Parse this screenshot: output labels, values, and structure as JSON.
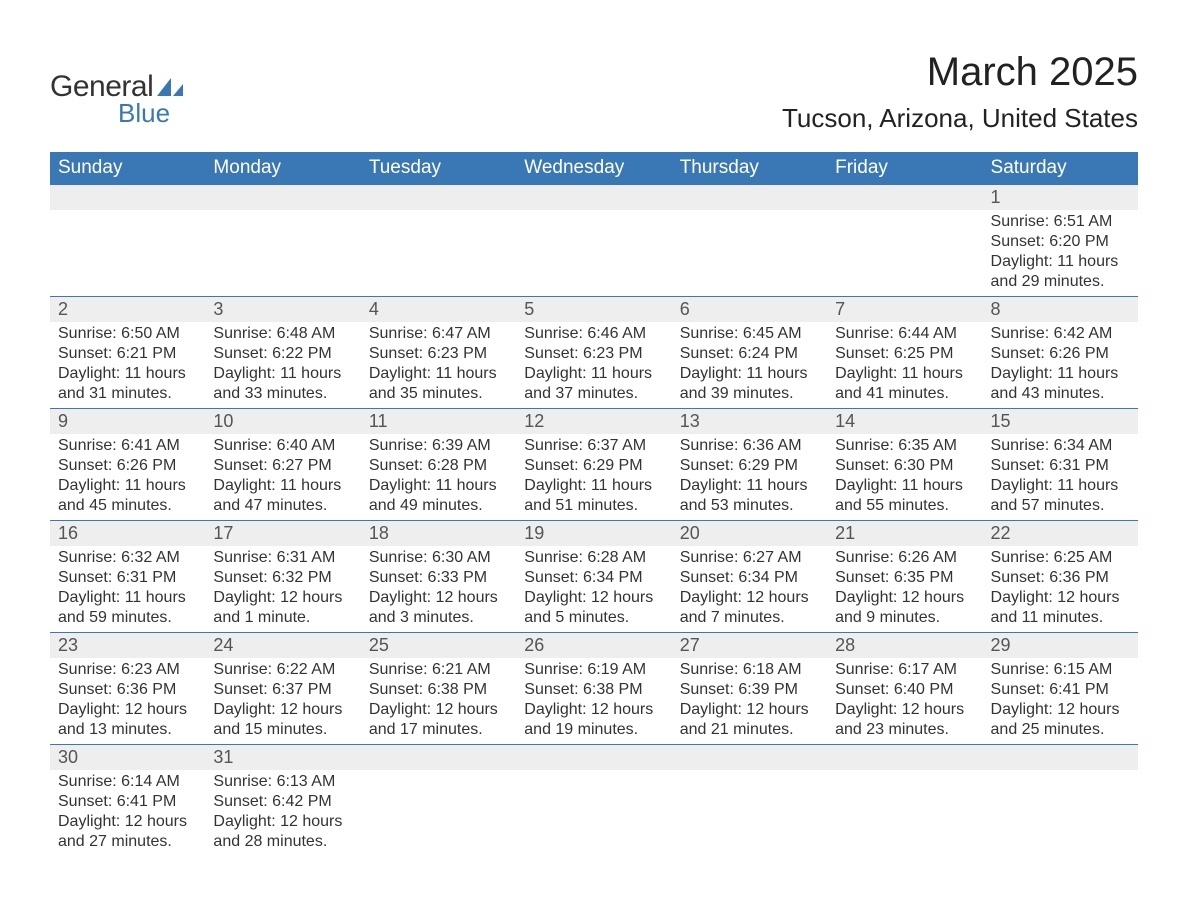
{
  "logo": {
    "word1": "General",
    "word2": "Blue",
    "sail_color": "#3a78b5"
  },
  "title": "March 2025",
  "location": "Tucson, Arizona, United States",
  "colors": {
    "header_bg": "#3a78b5",
    "header_text": "#ffffff",
    "daynum_bg": "#eeeeee",
    "row_border": "#3a78b5",
    "body_text": "#333333"
  },
  "fonts": {
    "title_pt": 40,
    "location_pt": 26,
    "header_pt": 19,
    "daynum_pt": 18,
    "detail_pt": 16
  },
  "weekdays": [
    "Sunday",
    "Monday",
    "Tuesday",
    "Wednesday",
    "Thursday",
    "Friday",
    "Saturday"
  ],
  "weeks": [
    [
      null,
      null,
      null,
      null,
      null,
      null,
      {
        "n": "1",
        "sunrise": "Sunrise: 6:51 AM",
        "sunset": "Sunset: 6:20 PM",
        "d1": "Daylight: 11 hours",
        "d2": "and 29 minutes."
      }
    ],
    [
      {
        "n": "2",
        "sunrise": "Sunrise: 6:50 AM",
        "sunset": "Sunset: 6:21 PM",
        "d1": "Daylight: 11 hours",
        "d2": "and 31 minutes."
      },
      {
        "n": "3",
        "sunrise": "Sunrise: 6:48 AM",
        "sunset": "Sunset: 6:22 PM",
        "d1": "Daylight: 11 hours",
        "d2": "and 33 minutes."
      },
      {
        "n": "4",
        "sunrise": "Sunrise: 6:47 AM",
        "sunset": "Sunset: 6:23 PM",
        "d1": "Daylight: 11 hours",
        "d2": "and 35 minutes."
      },
      {
        "n": "5",
        "sunrise": "Sunrise: 6:46 AM",
        "sunset": "Sunset: 6:23 PM",
        "d1": "Daylight: 11 hours",
        "d2": "and 37 minutes."
      },
      {
        "n": "6",
        "sunrise": "Sunrise: 6:45 AM",
        "sunset": "Sunset: 6:24 PM",
        "d1": "Daylight: 11 hours",
        "d2": "and 39 minutes."
      },
      {
        "n": "7",
        "sunrise": "Sunrise: 6:44 AM",
        "sunset": "Sunset: 6:25 PM",
        "d1": "Daylight: 11 hours",
        "d2": "and 41 minutes."
      },
      {
        "n": "8",
        "sunrise": "Sunrise: 6:42 AM",
        "sunset": "Sunset: 6:26 PM",
        "d1": "Daylight: 11 hours",
        "d2": "and 43 minutes."
      }
    ],
    [
      {
        "n": "9",
        "sunrise": "Sunrise: 6:41 AM",
        "sunset": "Sunset: 6:26 PM",
        "d1": "Daylight: 11 hours",
        "d2": "and 45 minutes."
      },
      {
        "n": "10",
        "sunrise": "Sunrise: 6:40 AM",
        "sunset": "Sunset: 6:27 PM",
        "d1": "Daylight: 11 hours",
        "d2": "and 47 minutes."
      },
      {
        "n": "11",
        "sunrise": "Sunrise: 6:39 AM",
        "sunset": "Sunset: 6:28 PM",
        "d1": "Daylight: 11 hours",
        "d2": "and 49 minutes."
      },
      {
        "n": "12",
        "sunrise": "Sunrise: 6:37 AM",
        "sunset": "Sunset: 6:29 PM",
        "d1": "Daylight: 11 hours",
        "d2": "and 51 minutes."
      },
      {
        "n": "13",
        "sunrise": "Sunrise: 6:36 AM",
        "sunset": "Sunset: 6:29 PM",
        "d1": "Daylight: 11 hours",
        "d2": "and 53 minutes."
      },
      {
        "n": "14",
        "sunrise": "Sunrise: 6:35 AM",
        "sunset": "Sunset: 6:30 PM",
        "d1": "Daylight: 11 hours",
        "d2": "and 55 minutes."
      },
      {
        "n": "15",
        "sunrise": "Sunrise: 6:34 AM",
        "sunset": "Sunset: 6:31 PM",
        "d1": "Daylight: 11 hours",
        "d2": "and 57 minutes."
      }
    ],
    [
      {
        "n": "16",
        "sunrise": "Sunrise: 6:32 AM",
        "sunset": "Sunset: 6:31 PM",
        "d1": "Daylight: 11 hours",
        "d2": "and 59 minutes."
      },
      {
        "n": "17",
        "sunrise": "Sunrise: 6:31 AM",
        "sunset": "Sunset: 6:32 PM",
        "d1": "Daylight: 12 hours",
        "d2": "and 1 minute."
      },
      {
        "n": "18",
        "sunrise": "Sunrise: 6:30 AM",
        "sunset": "Sunset: 6:33 PM",
        "d1": "Daylight: 12 hours",
        "d2": "and 3 minutes."
      },
      {
        "n": "19",
        "sunrise": "Sunrise: 6:28 AM",
        "sunset": "Sunset: 6:34 PM",
        "d1": "Daylight: 12 hours",
        "d2": "and 5 minutes."
      },
      {
        "n": "20",
        "sunrise": "Sunrise: 6:27 AM",
        "sunset": "Sunset: 6:34 PM",
        "d1": "Daylight: 12 hours",
        "d2": "and 7 minutes."
      },
      {
        "n": "21",
        "sunrise": "Sunrise: 6:26 AM",
        "sunset": "Sunset: 6:35 PM",
        "d1": "Daylight: 12 hours",
        "d2": "and 9 minutes."
      },
      {
        "n": "22",
        "sunrise": "Sunrise: 6:25 AM",
        "sunset": "Sunset: 6:36 PM",
        "d1": "Daylight: 12 hours",
        "d2": "and 11 minutes."
      }
    ],
    [
      {
        "n": "23",
        "sunrise": "Sunrise: 6:23 AM",
        "sunset": "Sunset: 6:36 PM",
        "d1": "Daylight: 12 hours",
        "d2": "and 13 minutes."
      },
      {
        "n": "24",
        "sunrise": "Sunrise: 6:22 AM",
        "sunset": "Sunset: 6:37 PM",
        "d1": "Daylight: 12 hours",
        "d2": "and 15 minutes."
      },
      {
        "n": "25",
        "sunrise": "Sunrise: 6:21 AM",
        "sunset": "Sunset: 6:38 PM",
        "d1": "Daylight: 12 hours",
        "d2": "and 17 minutes."
      },
      {
        "n": "26",
        "sunrise": "Sunrise: 6:19 AM",
        "sunset": "Sunset: 6:38 PM",
        "d1": "Daylight: 12 hours",
        "d2": "and 19 minutes."
      },
      {
        "n": "27",
        "sunrise": "Sunrise: 6:18 AM",
        "sunset": "Sunset: 6:39 PM",
        "d1": "Daylight: 12 hours",
        "d2": "and 21 minutes."
      },
      {
        "n": "28",
        "sunrise": "Sunrise: 6:17 AM",
        "sunset": "Sunset: 6:40 PM",
        "d1": "Daylight: 12 hours",
        "d2": "and 23 minutes."
      },
      {
        "n": "29",
        "sunrise": "Sunrise: 6:15 AM",
        "sunset": "Sunset: 6:41 PM",
        "d1": "Daylight: 12 hours",
        "d2": "and 25 minutes."
      }
    ],
    [
      {
        "n": "30",
        "sunrise": "Sunrise: 6:14 AM",
        "sunset": "Sunset: 6:41 PM",
        "d1": "Daylight: 12 hours",
        "d2": "and 27 minutes."
      },
      {
        "n": "31",
        "sunrise": "Sunrise: 6:13 AM",
        "sunset": "Sunset: 6:42 PM",
        "d1": "Daylight: 12 hours",
        "d2": "and 28 minutes."
      },
      null,
      null,
      null,
      null,
      null
    ]
  ]
}
